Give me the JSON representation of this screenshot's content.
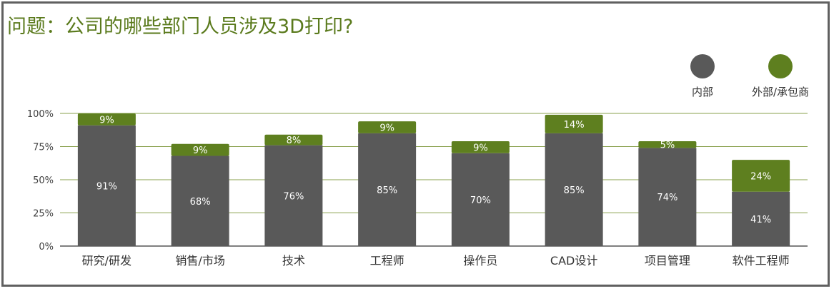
{
  "title": "问题：公司的哪些部门人员涉及3D打印?",
  "colors": {
    "inner": "#595959",
    "outer": "#5e7f1f",
    "grid": "#8aa14e",
    "axis": "#333333"
  },
  "chart_data": {
    "type": "bar",
    "stacked": true,
    "categories": [
      "研究/研发",
      "销售/市场",
      "技术",
      "工程师",
      "操作员",
      "CAD设计",
      "项目管理",
      "软件工程师"
    ],
    "series": [
      {
        "name": "内部",
        "values": [
          91,
          68,
          76,
          85,
          70,
          85,
          74,
          41
        ],
        "labels": [
          "91%",
          "68%",
          "76%",
          "85%",
          "70%",
          "85%",
          "74%",
          "41%"
        ]
      },
      {
        "name": "外部/承包商",
        "values": [
          9,
          9,
          8,
          9,
          9,
          14,
          5,
          24
        ],
        "labels": [
          "9%",
          "9%",
          "8%",
          "9%",
          "9%",
          "14%",
          "5%",
          "24%"
        ]
      }
    ],
    "ylim": [
      0,
      100
    ],
    "yticks": [
      0,
      25,
      50,
      75,
      100
    ],
    "ytick_labels": [
      "0%",
      "25%",
      "50%",
      "75%",
      "100%"
    ],
    "grid": true,
    "legend": "top-right"
  }
}
